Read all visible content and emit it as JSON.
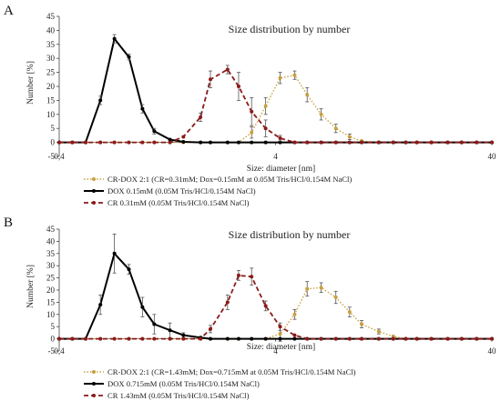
{
  "panels": [
    {
      "letter": "A",
      "title": "Size distribution by number",
      "xlabel": "Size: diameter [nm]",
      "ylabel": "Number [%]",
      "x_ticks": [
        "0,4",
        "4",
        "40"
      ],
      "y_ticks": [
        "-5",
        "0",
        "5",
        "10",
        "15",
        "20",
        "25",
        "30",
        "35",
        "40",
        "45"
      ],
      "legend": [
        "CR-DOX 2:1 (CR=0.31mM; Dox=0.15mM at 0.05M Tris/HCl/0.154M NaCl)",
        "DOX 0.15mM (0.05M Tris/HCl/0.154M NaCl)",
        "CR 0.31mM (0.05M Tris/HCl/0.154M NaCl)"
      ]
    },
    {
      "letter": "B",
      "title": "Size distribution by number",
      "xlabel": "Size: diameter [nm]",
      "ylabel": "Number [%]",
      "x_ticks": [
        "0,4",
        "4",
        "40"
      ],
      "y_ticks": [
        "-5",
        "0",
        "5",
        "10",
        "15",
        "20",
        "25",
        "30",
        "35",
        "40",
        "45"
      ],
      "legend": [
        "CR-DOX 2:1 (CR=1.43mM; Dox=0.715mM at 0.05M Tris/HCl/0.154M NaCl)",
        "DOX 0.715mM (0.05M Tris/HCl/0.154M NaCl)",
        "CR 1.43mM (0.05M Tris/HCl/0.154M NaCl)"
      ]
    }
  ],
  "colors": {
    "crdox": "#c8a040",
    "dox": "#000000",
    "cr": "#8b1a1a",
    "axis": "#444444"
  },
  "chart_data": [
    {
      "type": "line",
      "title": "Size distribution by number",
      "xlabel": "Size: diameter [nm]",
      "ylabel": "Number [%]",
      "x_scale": "log",
      "xlim": [
        0.4,
        40
      ],
      "ylim": [
        -5,
        45
      ],
      "grid": false,
      "legend_position": "bottom",
      "series": [
        {
          "name": "CR-DOX 2:1 (CR=0.31mM; Dox=0.15mM at 0.05M Tris/HCl/0.154M NaCl)",
          "style": "dotted",
          "color": "#c8a040",
          "x": [
            0.4,
            0.46,
            0.53,
            0.62,
            0.72,
            0.84,
            0.97,
            1.1,
            1.3,
            1.5,
            1.8,
            2.0,
            2.4,
            2.7,
            3.1,
            3.6,
            4.2,
            4.9,
            5.6,
            6.5,
            7.6,
            8.8,
            10,
            12,
            14,
            16,
            18,
            21,
            25,
            29,
            34,
            40
          ],
          "y": [
            0,
            0,
            0,
            0,
            0,
            0,
            0,
            0,
            0,
            0,
            0,
            0,
            0,
            0,
            3.5,
            13,
            23,
            24,
            17,
            10,
            5,
            2,
            0.5,
            0,
            0,
            0,
            0,
            0,
            0,
            0,
            0,
            0
          ],
          "err": [
            0,
            0,
            0,
            0,
            0,
            0,
            0,
            0,
            0,
            0,
            0,
            0,
            0,
            0,
            2,
            3,
            2,
            1.5,
            2.5,
            2,
            1.5,
            1,
            0,
            0,
            0,
            0,
            0,
            0,
            0,
            0,
            0,
            0
          ]
        },
        {
          "name": "DOX 0.15mM (0.05M Tris/HCl/0.154M NaCl)",
          "style": "solid",
          "color": "#000000",
          "x": [
            0.4,
            0.46,
            0.53,
            0.62,
            0.72,
            0.84,
            0.97,
            1.1,
            1.3,
            1.5,
            1.8,
            2.0,
            2.4,
            2.7,
            3.1,
            3.6,
            4.2,
            4.9,
            5.6,
            6.5,
            7.6,
            8.8,
            10,
            12,
            14,
            16,
            18,
            21,
            25,
            29,
            34,
            40
          ],
          "y": [
            0,
            0,
            0,
            15,
            37,
            30.5,
            12,
            4,
            1,
            0.2,
            0,
            0,
            0,
            0,
            0,
            0,
            0,
            0,
            0,
            0,
            0,
            0,
            0,
            0,
            0,
            0,
            0,
            0,
            0,
            0,
            0,
            0
          ],
          "err": [
            0,
            0,
            0,
            1.5,
            1.5,
            1,
            1.5,
            1,
            0,
            0,
            0,
            0,
            0,
            0,
            0,
            0,
            0,
            0,
            0,
            0,
            0,
            0,
            0,
            0,
            0,
            0,
            0,
            0,
            0,
            0,
            0,
            0
          ]
        },
        {
          "name": "CR 0.31mM (0.05M Tris/HCl/0.154M NaCl)",
          "style": "dashed",
          "color": "#8b1a1a",
          "x": [
            0.4,
            0.46,
            0.53,
            0.62,
            0.72,
            0.84,
            0.97,
            1.1,
            1.3,
            1.5,
            1.8,
            2.0,
            2.4,
            2.7,
            3.1,
            3.6,
            4.2,
            4.9,
            5.6,
            6.5,
            7.6,
            8.8,
            10,
            12,
            14,
            16,
            18,
            21,
            25,
            29,
            34,
            40
          ],
          "y": [
            0,
            0,
            0,
            0,
            0,
            0,
            0,
            0,
            0,
            2,
            9,
            22.5,
            26,
            20,
            11,
            5,
            1.5,
            0,
            0,
            0,
            0,
            0,
            0,
            0,
            0,
            0,
            0,
            0,
            0,
            0,
            0,
            0
          ],
          "err": [
            0,
            0,
            0,
            0,
            0,
            0,
            0,
            0,
            0,
            0,
            1.5,
            3,
            1.5,
            5,
            5,
            3,
            1,
            0,
            0,
            0,
            0,
            0,
            0,
            0,
            0,
            0,
            0,
            0,
            0,
            0,
            0,
            0
          ]
        }
      ]
    },
    {
      "type": "line",
      "title": "Size distribution by number",
      "xlabel": "Size: diameter [nm]",
      "ylabel": "Number [%]",
      "x_scale": "log",
      "xlim": [
        0.4,
        40
      ],
      "ylim": [
        -5,
        45
      ],
      "grid": false,
      "legend_position": "bottom",
      "series": [
        {
          "name": "CR-DOX 2:1 (CR=1.43mM; Dox=0.715mM at 0.05M Tris/HCl/0.154M NaCl)",
          "style": "dotted",
          "color": "#c8a040",
          "x": [
            0.4,
            0.46,
            0.53,
            0.62,
            0.72,
            0.84,
            0.97,
            1.1,
            1.3,
            1.5,
            1.8,
            2.0,
            2.4,
            2.7,
            3.1,
            3.6,
            4.2,
            4.9,
            5.6,
            6.5,
            7.6,
            8.8,
            10,
            12,
            14,
            16,
            18,
            21,
            25,
            29,
            34,
            40
          ],
          "y": [
            0,
            0,
            0,
            0,
            0,
            0,
            0,
            0,
            0,
            0,
            0,
            0,
            0,
            0,
            0,
            0,
            2,
            10,
            20.5,
            21,
            17,
            11,
            6,
            3,
            1,
            0,
            0,
            0,
            0,
            0,
            0,
            0
          ],
          "err": [
            0,
            0,
            0,
            0,
            0,
            0,
            0,
            0,
            0,
            0,
            0,
            0,
            0,
            0,
            0,
            0,
            3,
            2,
            3,
            2,
            2.5,
            2,
            1.5,
            1,
            0,
            0,
            0,
            0,
            0,
            0,
            0,
            0
          ]
        },
        {
          "name": "DOX 0.715mM (0.05M Tris/HCl/0.154M NaCl)",
          "style": "solid",
          "color": "#000000",
          "x": [
            0.4,
            0.46,
            0.53,
            0.62,
            0.72,
            0.84,
            0.97,
            1.1,
            1.3,
            1.5,
            1.8,
            2.0,
            2.4,
            2.7,
            3.1,
            3.6,
            4.2,
            4.9,
            5.6,
            6.5,
            7.6,
            8.8,
            10,
            12,
            14,
            16,
            18,
            21,
            25,
            29,
            34,
            40
          ],
          "y": [
            0,
            0,
            0,
            14,
            35,
            28.5,
            13,
            6,
            3.5,
            1.5,
            0.5,
            0,
            0,
            0,
            0,
            0,
            0,
            0,
            0,
            0,
            0,
            0,
            0,
            0,
            0,
            0,
            0,
            0,
            0,
            0,
            0,
            0
          ],
          "err": [
            0,
            0,
            0,
            4,
            8,
            2,
            4,
            4,
            3,
            1,
            0,
            0,
            0,
            0,
            0,
            0,
            0,
            0,
            0,
            0,
            0,
            0,
            0,
            0,
            0,
            0,
            0,
            0,
            0,
            0,
            0,
            0
          ]
        },
        {
          "name": "CR 1.43mM (0.05M Tris/HCl/0.154M NaCl)",
          "style": "dashed",
          "color": "#8b1a1a",
          "x": [
            0.4,
            0.46,
            0.53,
            0.62,
            0.72,
            0.84,
            0.97,
            1.1,
            1.3,
            1.5,
            1.8,
            2.0,
            2.4,
            2.7,
            3.1,
            3.6,
            4.2,
            4.9,
            5.6,
            6.5,
            7.6,
            8.8,
            10,
            12,
            14,
            16,
            18,
            21,
            25,
            29,
            34,
            40
          ],
          "y": [
            0,
            0,
            0,
            0,
            0,
            0,
            0,
            0,
            0,
            0,
            0,
            4,
            15,
            26,
            25.5,
            13.5,
            5,
            1.5,
            0,
            0,
            0,
            0,
            0,
            0,
            0,
            0,
            0,
            0,
            0,
            0,
            0,
            0
          ],
          "err": [
            0,
            0,
            0,
            0,
            0,
            0,
            0,
            0,
            0,
            0,
            0,
            1.5,
            3,
            2,
            3.5,
            2,
            1.5,
            0,
            0,
            0,
            0,
            0,
            0,
            0,
            0,
            0,
            0,
            0,
            0,
            0,
            0,
            0
          ]
        }
      ]
    }
  ]
}
